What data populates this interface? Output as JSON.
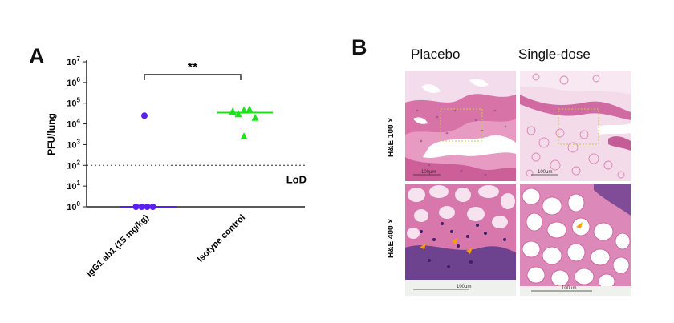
{
  "panel_a": {
    "label": "A"
  },
  "panel_b": {
    "label": "B",
    "columns": [
      "Placebo",
      "Single-dose"
    ],
    "rows": [
      "H&E 100 ×",
      "H&E 400 ×"
    ],
    "scale_bar": "100μm",
    "colors": {
      "tissue_pink": "#e07fb0",
      "nuclei": "#4b2a82",
      "arrow": "#f5a000",
      "box": "#c9c94a"
    }
  },
  "chart_data": {
    "type": "scatter",
    "title": "",
    "ylabel": "PFU/lung",
    "yscale": "log",
    "ylim": [
      1,
      10000000
    ],
    "yticks": [
      {
        "value": 1,
        "base": "10",
        "exp": "0"
      },
      {
        "value": 10,
        "base": "10",
        "exp": "1"
      },
      {
        "value": 100,
        "base": "10",
        "exp": "2"
      },
      {
        "value": 1000,
        "base": "10",
        "exp": "3"
      },
      {
        "value": 10000,
        "base": "10",
        "exp": "4"
      },
      {
        "value": 100000,
        "base": "10",
        "exp": "5"
      },
      {
        "value": 1000000,
        "base": "10",
        "exp": "6"
      },
      {
        "value": 10000000,
        "base": "10",
        "exp": "7"
      }
    ],
    "categories": [
      "IgG1 ab1 (15 mg/kg)",
      "Isotype control"
    ],
    "series": [
      {
        "name": "IgG1 ab1 (15 mg/kg)",
        "marker": "circle",
        "color": "#5a1ff0",
        "values": [
          25000,
          1,
          1,
          1,
          1
        ],
        "jitter": [
          0,
          -1.5,
          -0.5,
          0.5,
          1.5
        ],
        "median": 1
      },
      {
        "name": "Isotype control",
        "marker": "triangle",
        "color": "#1ee01e",
        "values": [
          40000,
          30000,
          45000,
          50000,
          20000,
          2500
        ],
        "jitter": [
          -2,
          -1,
          0,
          1,
          2,
          0
        ],
        "median": 35000
      }
    ],
    "reference_line": {
      "label": "LoD",
      "value": 100,
      "style": "dotted"
    },
    "significance": {
      "label": "**",
      "between": [
        0,
        1
      ]
    }
  }
}
